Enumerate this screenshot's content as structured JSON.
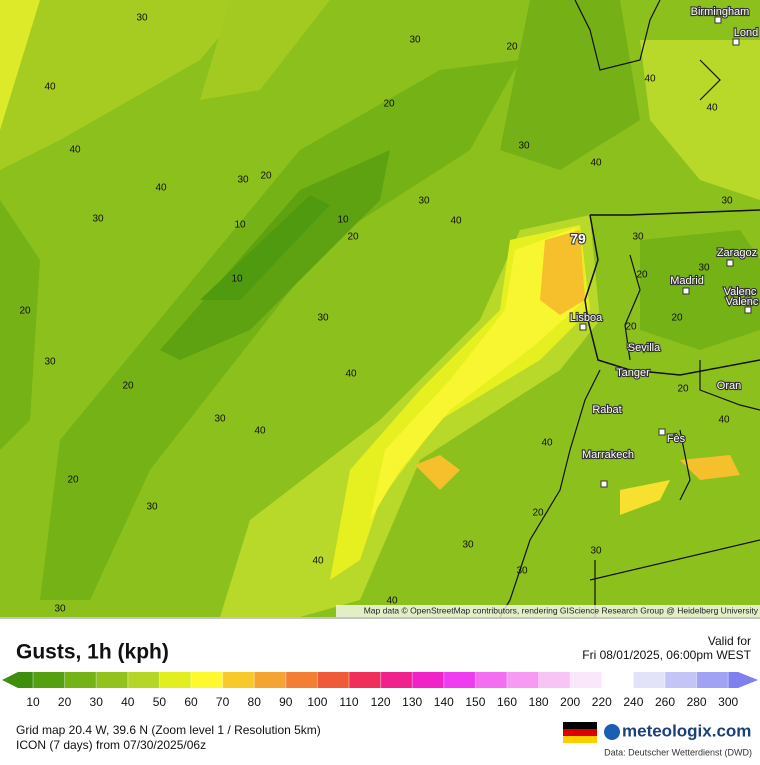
{
  "map": {
    "contour_labels": [
      "30",
      "30",
      "20",
      "40",
      "20",
      "40",
      "30",
      "40",
      "30",
      "20",
      "40",
      "30",
      "30",
      "10",
      "10",
      "20",
      "40",
      "10",
      "20",
      "30",
      "30",
      "40",
      "20",
      "30",
      "40",
      "40",
      "20",
      "30",
      "20",
      "30",
      "40",
      "30",
      "30",
      "40",
      "30",
      "40",
      "40",
      "30",
      "30",
      "20",
      "30",
      "20",
      "20",
      "20",
      "40",
      "79"
    ],
    "cities": [
      "Birmingham",
      "Lond",
      "Zaragoz",
      "Madrid",
      "Valenc",
      "Valenc",
      "Lisboa",
      "Sevilla",
      "Tanger",
      "Rabat",
      "Fès",
      "Marrakech",
      "Oran"
    ],
    "attribution": "Map data © OpenStreetMap contributors, rendering GIScience Research Group @ Heidelberg University"
  },
  "header": {
    "title": "Gusts, 1h (kph)",
    "valid_label": "Valid for",
    "valid_time": "Fri 08/01/2025, 06:00pm WEST"
  },
  "legend": {
    "under_color": "#3f8f0c",
    "scale": [
      {
        "value": 10,
        "color": "#55a011"
      },
      {
        "value": 20,
        "color": "#74b216"
      },
      {
        "value": 30,
        "color": "#92c21b"
      },
      {
        "value": 40,
        "color": "#b5d626"
      },
      {
        "value": 50,
        "color": "#e3ee20"
      },
      {
        "value": 60,
        "color": "#fdf92e"
      },
      {
        "value": 70,
        "color": "#f8c92a"
      },
      {
        "value": 80,
        "color": "#f6a431"
      },
      {
        "value": 90,
        "color": "#f37f35"
      },
      {
        "value": 100,
        "color": "#ef5a38"
      },
      {
        "value": 110,
        "color": "#f0305a"
      },
      {
        "value": 120,
        "color": "#f0208c"
      },
      {
        "value": 130,
        "color": "#f022c8"
      },
      {
        "value": 140,
        "color": "#f03cf0"
      },
      {
        "value": 150,
        "color": "#f46ef2"
      },
      {
        "value": 160,
        "color": "#f69af4"
      },
      {
        "value": 180,
        "color": "#f8c4f6"
      },
      {
        "value": 200,
        "color": "#fae8fa"
      },
      {
        "value": 220,
        "color": "#ffffff"
      },
      {
        "value": 240,
        "color": "#e2e2f8"
      },
      {
        "value": 260,
        "color": "#c4c4f6"
      },
      {
        "value": 280,
        "color": "#a2a2f4"
      },
      {
        "value": 300,
        "color": "#7f80f0"
      }
    ]
  },
  "footer": {
    "grid": "Grid map 20.4 W, 39.6 N (Zoom level 1 / Resolution 5km)",
    "model": "ICON (7 days)  from  07/30/2025/06z",
    "brand": "meteologix.com",
    "source": "Data: Deutscher Wetterdienst (DWD)"
  }
}
